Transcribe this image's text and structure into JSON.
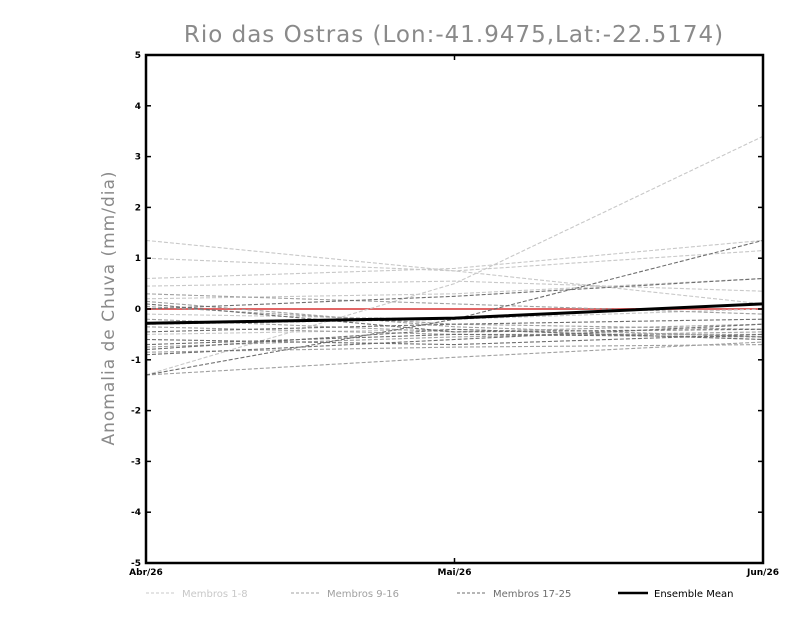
{
  "chart_data": {
    "type": "line",
    "title": "Rio das Ostras (Lon:-41.9475,Lat:-22.5174)",
    "ylabel": "Anomalia de Chuva (mm/dia)",
    "xlabel": "",
    "categories": [
      "Abr/26",
      "Mai/26",
      "Jun/26"
    ],
    "ylim": [
      -5,
      5
    ],
    "yticks": [
      "-5",
      "-4",
      "-3",
      "-2",
      "-1",
      "0",
      "1",
      "2",
      "3",
      "4",
      "5"
    ],
    "grid": false,
    "legend_position": "bottom",
    "reference_line": {
      "y": 0,
      "color": "#e06666"
    },
    "groups": [
      {
        "name": "Membros 1-8",
        "color": "#c8c8c8"
      },
      {
        "name": "Membros 9-16",
        "color": "#a0a0a0"
      },
      {
        "name": "Membros 17-25",
        "color": "#6e6e6e"
      },
      {
        "name": "Ensemble Mean",
        "color": "#000000"
      }
    ],
    "series": [
      {
        "group": 0,
        "values": [
          1.35,
          0.75,
          0.1
        ]
      },
      {
        "group": 0,
        "values": [
          0.6,
          0.8,
          1.35
        ]
      },
      {
        "group": 0,
        "values": [
          0.45,
          0.55,
          0.35
        ]
      },
      {
        "group": 0,
        "values": [
          0.2,
          0.3,
          0.6
        ]
      },
      {
        "group": 0,
        "values": [
          -0.1,
          -0.2,
          0.0
        ]
      },
      {
        "group": 0,
        "values": [
          -0.5,
          -0.4,
          -0.6
        ]
      },
      {
        "group": 0,
        "values": [
          -1.3,
          0.5,
          3.4
        ]
      },
      {
        "group": 0,
        "values": [
          1.0,
          0.75,
          1.15
        ]
      },
      {
        "group": 1,
        "values": [
          0.05,
          -0.3,
          -0.4
        ]
      },
      {
        "group": 1,
        "values": [
          -0.2,
          -0.45,
          -0.3
        ]
      },
      {
        "group": 1,
        "values": [
          -0.75,
          -0.55,
          -0.45
        ]
      },
      {
        "group": 1,
        "values": [
          -0.85,
          -0.75,
          -0.7
        ]
      },
      {
        "group": 1,
        "values": [
          -1.3,
          -0.95,
          -0.65
        ]
      },
      {
        "group": 1,
        "values": [
          0.15,
          -0.35,
          -0.55
        ]
      },
      {
        "group": 1,
        "values": [
          0.3,
          0.1,
          -0.1
        ]
      },
      {
        "group": 1,
        "values": [
          -0.35,
          -0.5,
          -0.5
        ]
      },
      {
        "group": 2,
        "values": [
          -1.3,
          -0.2,
          1.35
        ]
      },
      {
        "group": 2,
        "values": [
          -0.9,
          -0.6,
          -0.3
        ]
      },
      {
        "group": 2,
        "values": [
          -0.8,
          -0.4,
          -0.6
        ]
      },
      {
        "group": 2,
        "values": [
          0.0,
          0.25,
          0.6
        ]
      },
      {
        "group": 2,
        "values": [
          -0.3,
          -0.2,
          0.1
        ]
      },
      {
        "group": 2,
        "values": [
          -0.7,
          -0.5,
          -0.55
        ]
      },
      {
        "group": 2,
        "values": [
          0.1,
          -0.45,
          -0.4
        ]
      },
      {
        "group": 2,
        "values": [
          -0.6,
          -0.7,
          -0.5
        ]
      },
      {
        "group": 2,
        "values": [
          -0.45,
          -0.3,
          -0.2
        ]
      },
      {
        "group": 3,
        "values": [
          -0.28,
          -0.18,
          0.1
        ]
      }
    ]
  }
}
